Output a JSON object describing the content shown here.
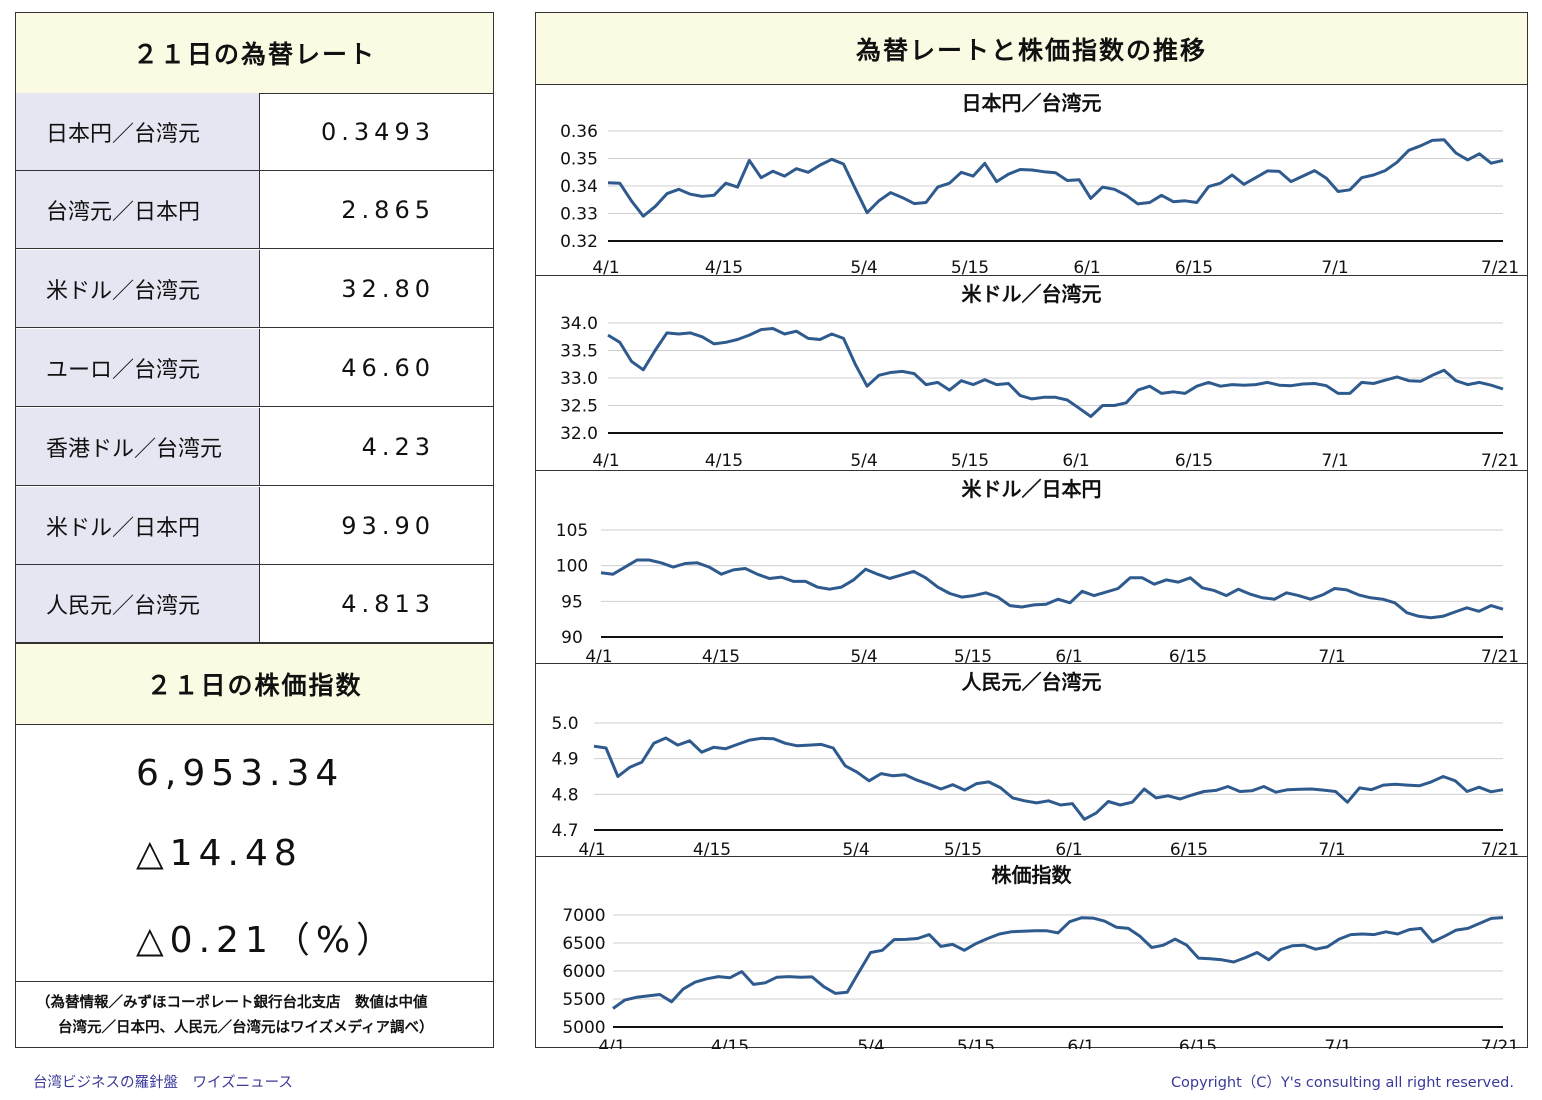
{
  "left": {
    "rates_title": "２１日の為替レート",
    "rates": [
      {
        "name": "日本円／台湾元",
        "value": "0.3493"
      },
      {
        "name": "台湾元／日本円",
        "value": "2.865"
      },
      {
        "name": "米ドル／台湾元",
        "value": "32.80"
      },
      {
        "name": "ユーロ／台湾元",
        "value": "46.60"
      },
      {
        "name": "香港ドル／台湾元",
        "value": "4.23"
      },
      {
        "name": "米ドル／日本円",
        "value": "93.90"
      },
      {
        "name": "人民元／台湾元",
        "value": "4.813"
      }
    ],
    "stock_title": "２１日の株価指数",
    "stock_value": "6,953.34",
    "stock_change": "△14.48",
    "stock_change_pct": "△0.21（%）",
    "note_line1": "（為替情報／みずほコーポレート銀行台北支店　数値は中値",
    "note_line2": "台湾元／日本円、人民元／台湾元はワイズメディア調べ）"
  },
  "right": {
    "title": "為替レートと株価指数の推移"
  },
  "footer": {
    "left": "台湾ビジネスの羅針盤　ワイズニュース",
    "right": "Copyright（C）Y's consulting all right reserved."
  },
  "chart_data": [
    {
      "type": "line",
      "title": "日本円／台湾元",
      "x_ticks": [
        "4/1",
        "4/15",
        "5/4",
        "5/15",
        "6/1",
        "6/15",
        "7/1",
        "7/21"
      ],
      "y_ticks": [
        "0.32",
        "0.33",
        "0.34",
        "0.35",
        "0.36"
      ],
      "ylim": [
        0.32,
        0.36
      ],
      "color": "#2e5a8e",
      "values": [
        0.3412,
        0.341,
        0.3345,
        0.329,
        0.3325,
        0.3372,
        0.3388,
        0.337,
        0.3362,
        0.3366,
        0.341,
        0.3396,
        0.3493,
        0.343,
        0.3454,
        0.3436,
        0.3463,
        0.345,
        0.3476,
        0.3497,
        0.348,
        0.339,
        0.3303,
        0.3346,
        0.3376,
        0.3358,
        0.3336,
        0.334,
        0.3396,
        0.341,
        0.345,
        0.3436,
        0.3482,
        0.3416,
        0.3443,
        0.346,
        0.3458,
        0.3452,
        0.3448,
        0.342,
        0.3423,
        0.3355,
        0.3396,
        0.3388,
        0.3366,
        0.3335,
        0.334,
        0.3366,
        0.3343,
        0.3346,
        0.334,
        0.3398,
        0.341,
        0.344,
        0.3406,
        0.343,
        0.3455,
        0.3453,
        0.3416,
        0.3436,
        0.3456,
        0.3428,
        0.338,
        0.3386,
        0.343,
        0.344,
        0.3456,
        0.3486,
        0.353,
        0.3546,
        0.3566,
        0.3568,
        0.352,
        0.3495,
        0.3517,
        0.3483,
        0.3493
      ]
    },
    {
      "type": "line",
      "title": "米ドル／台湾元",
      "x_ticks": [
        "4/1",
        "4/15",
        "5/4",
        "5/15",
        "6/1",
        "6/15",
        "7/1",
        "7/21"
      ],
      "y_ticks": [
        "32.0",
        "32.5",
        "33.0",
        "33.5",
        "34.0"
      ],
      "ylim": [
        32.0,
        34.0
      ],
      "color": "#2e5a8e",
      "values": [
        33.78,
        33.65,
        33.3,
        33.15,
        33.5,
        33.82,
        33.8,
        33.82,
        33.75,
        33.62,
        33.65,
        33.7,
        33.78,
        33.88,
        33.9,
        33.8,
        33.85,
        33.72,
        33.7,
        33.8,
        33.72,
        33.25,
        32.85,
        33.05,
        33.1,
        33.12,
        33.08,
        32.88,
        32.92,
        32.78,
        32.95,
        32.88,
        32.97,
        32.88,
        32.9,
        32.68,
        32.62,
        32.65,
        32.65,
        32.6,
        32.45,
        32.3,
        32.5,
        32.5,
        32.55,
        32.78,
        32.85,
        32.72,
        32.75,
        32.72,
        32.85,
        32.92,
        32.85,
        32.88,
        32.87,
        32.88,
        32.92,
        32.87,
        32.86,
        32.89,
        32.9,
        32.86,
        32.72,
        32.72,
        32.92,
        32.9,
        32.96,
        33.02,
        32.95,
        32.94,
        33.05,
        33.14,
        32.95,
        32.88,
        32.92,
        32.87,
        32.8
      ]
    },
    {
      "type": "line",
      "title": "米ドル／日本円",
      "x_ticks": [
        "4/1",
        "4/15",
        "5/4",
        "5/15",
        "6/1",
        "6/15",
        "7/1",
        "7/21"
      ],
      "y_ticks": [
        "90",
        "95",
        "100",
        "105"
      ],
      "ylim": [
        90,
        105
      ],
      "color": "#2e5a8e",
      "values": [
        99.0,
        98.8,
        99.8,
        100.8,
        100.8,
        100.4,
        99.8,
        100.3,
        100.4,
        99.8,
        98.8,
        99.4,
        99.6,
        98.8,
        98.2,
        98.4,
        97.8,
        97.8,
        97.0,
        96.7,
        97.0,
        98.0,
        99.5,
        98.8,
        98.2,
        98.7,
        99.2,
        98.3,
        97.0,
        96.1,
        95.6,
        95.8,
        96.2,
        95.6,
        94.4,
        94.2,
        94.5,
        94.6,
        95.3,
        94.8,
        96.4,
        95.8,
        96.3,
        96.8,
        98.3,
        98.3,
        97.4,
        98.0,
        97.7,
        98.3,
        96.9,
        96.5,
        95.8,
        96.7,
        96.0,
        95.5,
        95.3,
        96.2,
        95.8,
        95.3,
        95.9,
        96.8,
        96.6,
        95.9,
        95.5,
        95.3,
        94.8,
        93.4,
        92.9,
        92.7,
        92.9,
        93.5,
        94.1,
        93.6,
        94.4,
        93.9
      ]
    },
    {
      "type": "line",
      "title": "人民元／台湾元",
      "x_ticks": [
        "4/1",
        "4/15",
        "5/4",
        "5/15",
        "6/1",
        "6/15",
        "7/1",
        "7/21"
      ],
      "y_ticks": [
        "4.7",
        "4.8",
        "4.9",
        "5.0"
      ],
      "ylim": [
        4.7,
        5.0
      ],
      "color": "#2e5a8e",
      "values": [
        4.935,
        4.93,
        4.85,
        4.876,
        4.89,
        4.943,
        4.958,
        4.938,
        4.95,
        4.918,
        4.932,
        4.928,
        4.94,
        4.952,
        4.957,
        4.956,
        4.943,
        4.936,
        4.938,
        4.94,
        4.93,
        4.88,
        4.862,
        4.838,
        4.858,
        4.852,
        4.855,
        4.84,
        4.828,
        4.815,
        4.827,
        4.812,
        4.83,
        4.835,
        4.818,
        4.79,
        4.782,
        4.776,
        4.782,
        4.77,
        4.774,
        4.73,
        4.748,
        4.78,
        4.77,
        4.778,
        4.815,
        4.79,
        4.796,
        4.787,
        4.798,
        4.808,
        4.811,
        4.822,
        4.808,
        4.81,
        4.822,
        4.806,
        4.813,
        4.814,
        4.815,
        4.812,
        4.808,
        4.778,
        4.818,
        4.813,
        4.826,
        4.828,
        4.826,
        4.824,
        4.835,
        4.85,
        4.838,
        4.808,
        4.82,
        4.807,
        4.813
      ]
    },
    {
      "type": "line",
      "title": "株価指数",
      "x_ticks": [
        "4/1",
        "4/15",
        "5/4",
        "5/15",
        "6/1",
        "6/15",
        "7/1",
        "7/21"
      ],
      "y_ticks": [
        "5000",
        "5500",
        "6000",
        "6500",
        "7000"
      ],
      "ylim": [
        5000,
        7000
      ],
      "color": "#2e5a8e",
      "values": [
        5330,
        5480,
        5530,
        5555,
        5580,
        5450,
        5680,
        5800,
        5860,
        5900,
        5880,
        5990,
        5760,
        5790,
        5890,
        5900,
        5890,
        5895,
        5720,
        5600,
        5620,
        5980,
        6330,
        6370,
        6560,
        6565,
        6580,
        6650,
        6440,
        6475,
        6370,
        6490,
        6580,
        6660,
        6700,
        6710,
        6720,
        6720,
        6680,
        6880,
        6950,
        6945,
        6890,
        6780,
        6760,
        6620,
        6420,
        6460,
        6570,
        6460,
        6230,
        6220,
        6200,
        6160,
        6240,
        6330,
        6200,
        6380,
        6450,
        6460,
        6390,
        6430,
        6570,
        6650,
        6660,
        6650,
        6700,
        6660,
        6740,
        6760,
        6520,
        6620,
        6730,
        6760,
        6850,
        6940,
        6953
      ]
    }
  ]
}
